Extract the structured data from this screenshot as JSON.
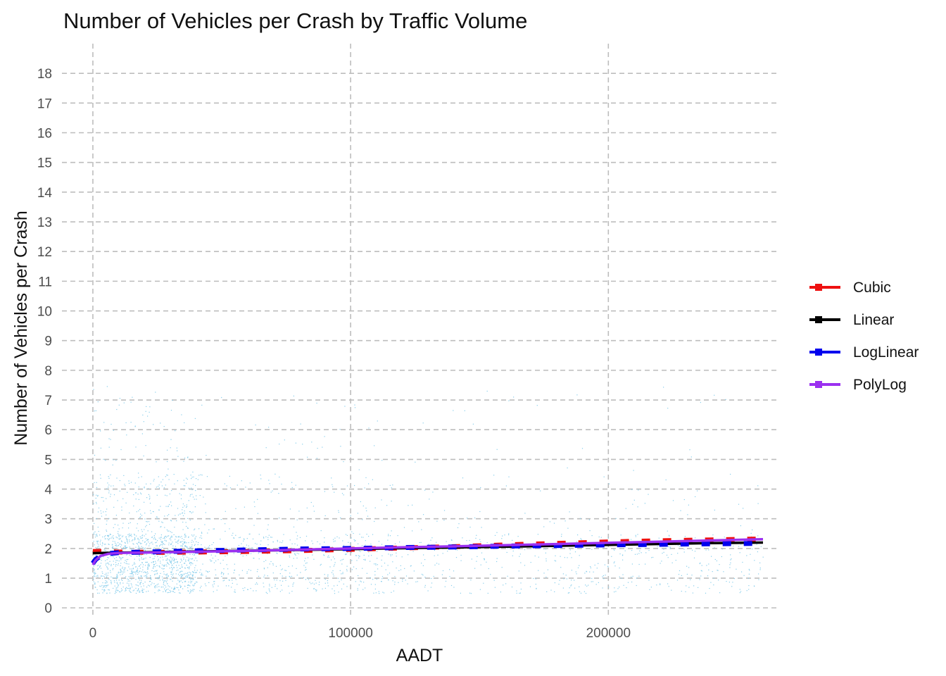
{
  "chart_data": {
    "type": "scatter",
    "title": "Number of Vehicles per Crash by Traffic Volume",
    "xlabel": "AADT",
    "ylabel": "Number of Vehicles per Crash",
    "xlim": [
      -12000,
      266000
    ],
    "ylim": [
      -0.35,
      19.0
    ],
    "x_ticks": [
      0,
      100000,
      200000
    ],
    "y_ticks": [
      0,
      1,
      2,
      3,
      4,
      5,
      6,
      7,
      8,
      9,
      10,
      11,
      12,
      13,
      14,
      15,
      16,
      17,
      18
    ],
    "grid": true,
    "grid_style": "dashed",
    "legend_position": "right",
    "scatter_color": "#87CEEB",
    "series": [
      {
        "name": "Cubic",
        "color": "#ee1111",
        "linetype": "dashed",
        "x": [
          0,
          3000,
          10000,
          25000,
          40000,
          60000,
          80000,
          100000,
          120000,
          140000,
          160000,
          180000,
          200000,
          220000,
          240000,
          260000
        ],
        "y": [
          1.9,
          1.9,
          1.88,
          1.87,
          1.88,
          1.9,
          1.93,
          1.97,
          2.02,
          2.06,
          2.12,
          2.17,
          2.22,
          2.26,
          2.29,
          2.32
        ]
      },
      {
        "name": "Linear",
        "color": "#000000",
        "linetype": "solid",
        "x": [
          0,
          3000,
          40000,
          80000,
          120000,
          160000,
          200000,
          240000,
          260000
        ],
        "y": [
          1.84,
          1.85,
          1.9,
          1.95,
          2.01,
          2.06,
          2.12,
          2.18,
          2.2
        ]
      },
      {
        "name": "LogLinear",
        "color": "#0000ee",
        "linetype": "dashed",
        "x": [
          0,
          1000,
          3000,
          6000,
          10000,
          20000,
          40000,
          60000,
          80000,
          100000,
          120000,
          140000,
          160000,
          180000,
          200000,
          220000,
          240000,
          260000
        ],
        "y": [
          1.5,
          1.62,
          1.76,
          1.83,
          1.86,
          1.88,
          1.92,
          1.95,
          1.98,
          2.0,
          2.03,
          2.05,
          2.08,
          2.1,
          2.12,
          2.14,
          2.16,
          2.17
        ]
      },
      {
        "name": "PolyLog",
        "color": "#9b30f0",
        "linetype": "solid",
        "x": [
          0,
          1000,
          3000,
          6000,
          10000,
          20000,
          40000,
          60000,
          80000,
          100000,
          120000,
          140000,
          160000,
          180000,
          200000,
          220000,
          240000,
          260000
        ],
        "y": [
          1.45,
          1.6,
          1.75,
          1.82,
          1.85,
          1.86,
          1.89,
          1.92,
          1.96,
          2.0,
          2.04,
          2.07,
          2.11,
          2.15,
          2.19,
          2.23,
          2.27,
          2.31
        ]
      }
    ]
  }
}
